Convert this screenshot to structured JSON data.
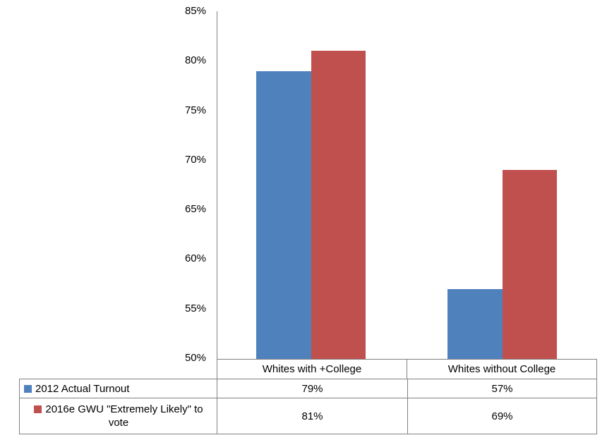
{
  "chart_data": {
    "type": "bar",
    "title": "",
    "categories": [
      "Whites with +College",
      "Whites without College"
    ],
    "series": [
      {
        "name": "2012 Actual Turnout",
        "color": "#4F81BD",
        "values": [
          79,
          57
        ]
      },
      {
        "name": "2016e GWU \"Extremely Likely\" to vote",
        "color": "#C0504D",
        "values": [
          81,
          69
        ]
      }
    ],
    "ylim": [
      50,
      85
    ],
    "ytick_step": 5,
    "ytick_labels": [
      "85%",
      "80%",
      "75%",
      "70%",
      "65%",
      "60%",
      "55%",
      "50%"
    ],
    "grid": false,
    "axis_color": "#808080",
    "legend_position": "data-table-left-column"
  },
  "data_table": {
    "rows": [
      {
        "legend": "2012 Actual Turnout",
        "key_color": "#4F81BD",
        "values": [
          "79%",
          "57%"
        ]
      },
      {
        "legend": "2016e GWU \"Extremely Likely\" to vote",
        "key_color": "#C0504D",
        "values": [
          "81%",
          "69%"
        ]
      }
    ]
  }
}
